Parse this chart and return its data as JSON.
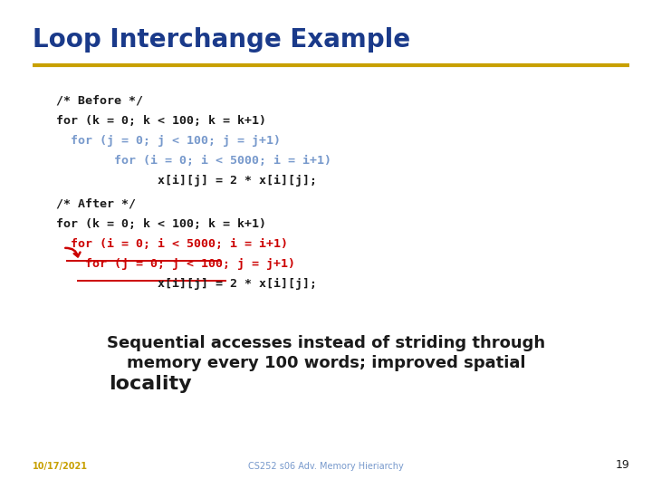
{
  "title": "Loop Interchange Example",
  "title_color": "#1a3a8a",
  "title_fontsize": 20,
  "separator_color": "#c8a000",
  "bg_color": "#ffffff",
  "code_before_comment": "/* Before */",
  "code_before_line1": "for (k = 0; k < 100; k = k+1)",
  "code_before_line2": "  for (j = 0; j < 100; j = j+1)",
  "code_before_line3": "        for (i = 0; i < 5000; i = i+1)",
  "code_before_line4": "              x[i][j] = 2 * x[i][j];",
  "code_after_comment": "/* After */",
  "code_after_line1": "for (k = 0; k < 100; k = k+1)",
  "code_after_line2": "  for (i = 0; i < 5000; i = i+1)",
  "code_after_line3": "    for (j = 0; j < 100; j = j+1)",
  "code_after_line4": "              x[i][j] = 2 * x[i][j];",
  "summary_line1": "Sequential accesses instead of striding through",
  "summary_line2": "memory every 100 words; improved spatial",
  "summary_line3": "locality",
  "date_text": "10/17/2021",
  "course_text": "CS252 s06 Adv. Memory Hieriarchy",
  "page_num": "19",
  "black_color": "#1a1a1a",
  "blue_color": "#7799cc",
  "red_color": "#cc0000",
  "gold_color": "#c8a000",
  "navy_color": "#1a3a8a",
  "summary_fontsize": 13,
  "code_fontsize": 9.5,
  "footer_fontsize": 7
}
